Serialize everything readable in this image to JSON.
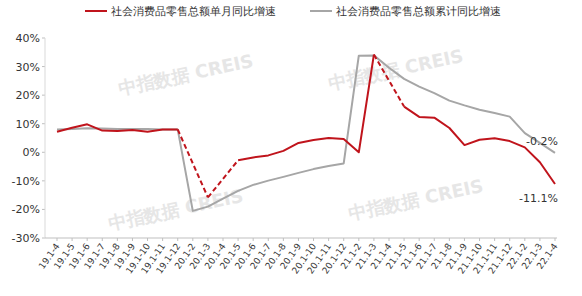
{
  "chart_data": {
    "type": "line",
    "watermark": "中指数据 CREIS",
    "categories": [
      "19.1-4",
      "19.1-5",
      "19.1-6",
      "19.1-7",
      "19.1-8",
      "19.1-9",
      "19.1-10",
      "19.1-11",
      "19.1-12",
      "20.1-2",
      "20.1-3",
      "20.1-4",
      "20.1-5",
      "20.1-6",
      "20.1-7",
      "20.1-8",
      "20.1-9",
      "20.1-10",
      "20.1-11",
      "20.1-12",
      "21.1-2",
      "21.1-3",
      "21.1-4",
      "21.1-5",
      "21.1-6",
      "21.1-7",
      "21.1-8",
      "21.1-9",
      "21.1-10",
      "21.1-11",
      "21.1-12",
      "22.1-2",
      "22.1-3",
      "22.1-4"
    ],
    "series": [
      {
        "name": "社会消费品零售总额单月同比增速",
        "color": "#c0141c",
        "line_style": "solid",
        "values": [
          7.2,
          8.6,
          9.8,
          7.6,
          7.5,
          7.8,
          7.2,
          8.0,
          8.0,
          null,
          -15.8,
          null,
          -2.8,
          -1.8,
          -1.1,
          0.5,
          3.3,
          4.3,
          5.0,
          4.6,
          0,
          34.2,
          null,
          16,
          12.4,
          12.1,
          8.5,
          2.5,
          4.4,
          4.9,
          3.9,
          1.7,
          -3.5,
          -11.1
        ]
      },
      {
        "name": "社会消费品零售总额累计同比增速",
        "color": "#a6a6a6",
        "line_style": "solid",
        "values": [
          8.0,
          8.1,
          8.4,
          8.3,
          8.2,
          8.2,
          8.1,
          8.0,
          8.0,
          -20.5,
          -19.0,
          -16.2,
          -13.5,
          -11.4,
          -9.9,
          -8.6,
          -7.2,
          -5.9,
          -4.8,
          -3.9,
          33.8,
          33.9,
          29.6,
          25.7,
          23.0,
          20.7,
          18.1,
          16.4,
          14.9,
          13.7,
          12.5,
          6.7,
          3.3,
          -0.2
        ]
      }
    ],
    "annotations": [
      {
        "text": "-0.2%",
        "value": -0.2
      },
      {
        "text": "-11.1%",
        "value": -11.1
      }
    ],
    "ylim": [
      -30,
      40
    ],
    "yticks": [
      {
        "value": -30,
        "label": "-30%"
      },
      {
        "value": -20,
        "label": "-20%"
      },
      {
        "value": -10,
        "label": "-10%"
      },
      {
        "value": 0,
        "label": "0%"
      },
      {
        "value": 10,
        "label": "10%"
      },
      {
        "value": 20,
        "label": "20%"
      },
      {
        "value": 30,
        "label": "30%"
      },
      {
        "value": 40,
        "label": "40%"
      }
    ],
    "grid": false,
    "legend": "top"
  }
}
